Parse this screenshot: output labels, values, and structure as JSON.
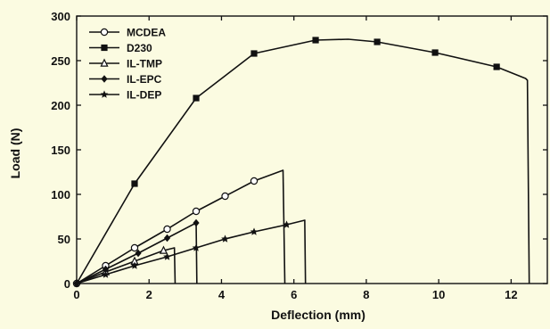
{
  "background": "#fbfbe1",
  "chart_data": {
    "type": "line",
    "title": "",
    "xlabel": "Deflection (mm)",
    "ylabel": "Load (N)",
    "xlim": [
      0,
      13
    ],
    "ylim": [
      0,
      300
    ],
    "xticks": [
      0,
      2,
      4,
      6,
      8,
      10,
      12
    ],
    "yticks": [
      0,
      50,
      100,
      150,
      200,
      250,
      300
    ],
    "grid": false,
    "legend_position": "top-left",
    "series": [
      {
        "name": "MCDEA",
        "marker": "circle-open",
        "color": "#111111",
        "x": [
          0,
          0.8,
          1.6,
          2.5,
          3.3,
          4.1,
          4.9,
          5.7,
          5.7,
          5.75
        ],
        "y": [
          0,
          20,
          40,
          61,
          81,
          98,
          115,
          127,
          127,
          0
        ],
        "marker_x": [
          0,
          0.8,
          1.6,
          2.5,
          3.3,
          4.1,
          4.9
        ],
        "marker_y": [
          0,
          20,
          40,
          61,
          81,
          98,
          115
        ]
      },
      {
        "name": "D230",
        "marker": "square-filled",
        "color": "#111111",
        "x": [
          0,
          1.6,
          3.3,
          4.9,
          6.6,
          7.5,
          8.3,
          9.9,
          11.6,
          12.4,
          12.45,
          12.5
        ],
        "y": [
          0,
          112,
          208,
          258,
          273,
          274,
          271,
          259,
          243,
          230,
          228,
          0
        ],
        "marker_x": [
          1.6,
          3.3,
          4.9,
          6.6,
          8.3,
          9.9,
          11.6
        ],
        "marker_y": [
          112,
          208,
          258,
          273,
          271,
          259,
          243
        ]
      },
      {
        "name": "IL-TMP",
        "marker": "triangle-open",
        "color": "#111111",
        "x": [
          0,
          0.8,
          1.6,
          2.4,
          2.7,
          2.72
        ],
        "y": [
          0,
          13,
          25,
          37,
          40,
          0
        ],
        "marker_x": [
          0.8,
          1.6,
          2.4
        ],
        "marker_y": [
          13,
          25,
          37
        ]
      },
      {
        "name": "IL-EPC",
        "marker": "diamond-filled",
        "color": "#111111",
        "x": [
          0,
          0.8,
          1.7,
          2.5,
          3.3,
          3.32
        ],
        "y": [
          0,
          16,
          34,
          51,
          68,
          0
        ],
        "marker_x": [
          0,
          0.8,
          1.7,
          2.5,
          3.3
        ],
        "marker_y": [
          0,
          16,
          34,
          51,
          68
        ]
      },
      {
        "name": "IL-DEP",
        "marker": "star-filled",
        "color": "#111111",
        "x": [
          0,
          0.8,
          1.6,
          2.5,
          3.3,
          4.1,
          4.9,
          5.8,
          6.3,
          6.32
        ],
        "y": [
          0,
          10,
          20,
          30,
          40,
          50,
          58,
          66,
          71,
          0
        ],
        "marker_x": [
          0,
          0.8,
          1.6,
          2.5,
          3.3,
          4.1,
          4.9,
          5.8
        ],
        "marker_y": [
          0,
          10,
          20,
          30,
          40,
          50,
          58,
          66
        ]
      }
    ]
  }
}
